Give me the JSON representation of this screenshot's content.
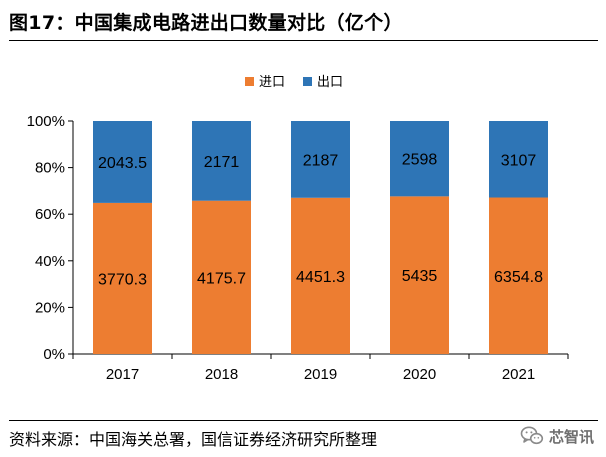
{
  "figure": {
    "title": "图17：中国集成电路进出口数量对比（亿个）",
    "source": "资料来源：中国海关总署，国信证券经济研究所整理",
    "watermark": "芯智讯",
    "watermark_icon": "wechat-icon"
  },
  "chart_data": {
    "type": "bar",
    "stacked": true,
    "normalized": true,
    "title": "图17：中国集成电路进出口数量对比（亿个）",
    "xlabel": "",
    "ylabel": "",
    "categories": [
      "2017",
      "2018",
      "2019",
      "2020",
      "2021"
    ],
    "series": [
      {
        "name": "进口",
        "color": "#ED7D31",
        "values": [
          3770.3,
          4175.7,
          4451.3,
          5435,
          6354.8
        ],
        "labels": [
          "3770.3",
          "4175.7",
          "4451.3",
          "5435",
          "6354.8"
        ]
      },
      {
        "name": "出口",
        "color": "#2E75B6",
        "values": [
          2043.5,
          2171,
          2187,
          2598,
          3107
        ],
        "labels": [
          "2043.5",
          "2171",
          "2187",
          "2598",
          "3107"
        ]
      }
    ],
    "ylim": [
      0,
      100
    ],
    "yticks": [
      0,
      20,
      40,
      60,
      80,
      100
    ],
    "ytick_labels": [
      "0%",
      "20%",
      "40%",
      "60%",
      "80%",
      "100%"
    ],
    "legend_position": "top-center",
    "grid": false
  }
}
